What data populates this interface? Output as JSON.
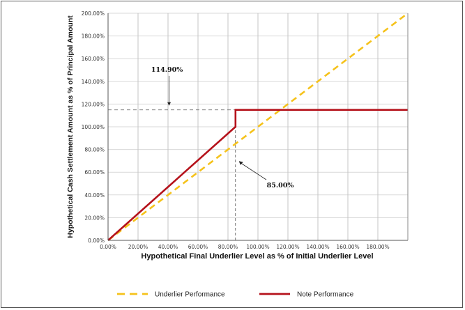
{
  "chart_data": {
    "type": "line",
    "xlabel": "Hypothetical Final Underlier Level as % of Initial Underlier Level",
    "ylabel": "Hypothetical Cash Settlement Amount as % of Principal Amount",
    "xlim": [
      0,
      200
    ],
    "ylim": [
      0,
      200
    ],
    "x_ticks": [
      0,
      20,
      40,
      60,
      80,
      100,
      120,
      140,
      160,
      180
    ],
    "x_tick_labels": [
      "0.00%",
      "20.00%",
      "40.00%",
      "60.00%",
      "80.00%",
      "100.00%",
      "120.00%",
      "140.00%",
      "160.00%",
      "180.00%"
    ],
    "y_ticks": [
      0,
      20,
      40,
      60,
      80,
      100,
      120,
      140,
      160,
      180,
      200
    ],
    "y_tick_labels": [
      "0.00%",
      "20.00%",
      "40.00%",
      "60.00%",
      "80.00%",
      "100.00%",
      "120.00%",
      "140.00%",
      "160.00%",
      "180.00%",
      "200.00%"
    ],
    "grid": true,
    "legend_position": "bottom",
    "series": [
      {
        "name": "Underlier Performance",
        "color": "#F5C21B",
        "style": "dashed",
        "points": [
          [
            0,
            0
          ],
          [
            200,
            200
          ]
        ]
      },
      {
        "name": "Note Performance",
        "color": "#B5121B",
        "style": "solid",
        "points": [
          [
            0,
            0
          ],
          [
            85,
            100
          ],
          [
            85,
            114.9
          ],
          [
            200,
            114.9
          ]
        ]
      }
    ],
    "annotations": [
      {
        "id": "cap",
        "text": "114.90%",
        "target": [
          50.5,
          114.9
        ]
      },
      {
        "id": "threshold",
        "text": "85.00%",
        "target": [
          85,
          71
        ]
      }
    ],
    "reference_lines": [
      {
        "orientation": "horizontal",
        "value": 114.9,
        "from": 0,
        "to": 85
      },
      {
        "orientation": "vertical",
        "value": 85,
        "from": 0,
        "to": 114.9
      }
    ]
  }
}
